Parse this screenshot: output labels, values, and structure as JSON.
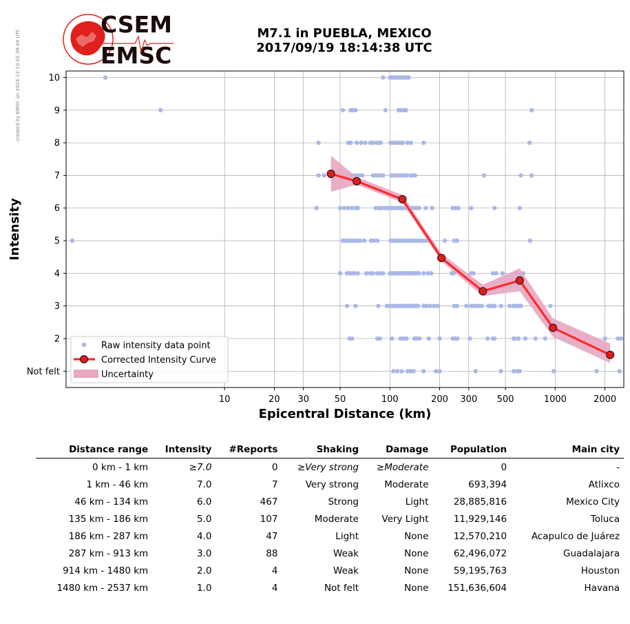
{
  "side_note": "created by EMSC on 2024-12-10 02:39:44 UTC",
  "logo": {
    "top": "CSEM",
    "bottom": "EMSC"
  },
  "title": {
    "line1": "M7.1 in PUEBLA, MEXICO",
    "line2": "2017/09/19 18:14:38 UTC"
  },
  "colors": {
    "raw_points": "#aab8e8",
    "curve": "#ff2a2a",
    "marker": "#e21b1b",
    "uncertainty": "#e8a6c2",
    "logo_red": "#e0201c"
  },
  "chart_data": {
    "type": "scatter",
    "xlabel": "Epicentral Distance (km)",
    "ylabel": "Intensity",
    "x_scale": "log",
    "xlim": [
      1.1,
      2600
    ],
    "ylim": [
      0.5,
      10.2
    ],
    "x_ticks": [
      10,
      20,
      30,
      50,
      100,
      200,
      300,
      500,
      1000,
      2000
    ],
    "x_tick_labels": [
      "10",
      "20",
      "30",
      "50",
      "100",
      "200",
      "300",
      "500",
      "1000",
      "2000"
    ],
    "y_ticks": [
      1,
      2,
      3,
      4,
      5,
      6,
      7,
      8,
      9,
      10
    ],
    "y_tick_labels": [
      "Not felt",
      "2",
      "3",
      "4",
      "5",
      "6",
      "7",
      "8",
      "9",
      "10"
    ],
    "grid": true,
    "legend_position": "lower-left",
    "legend": [
      "Raw intensity data point",
      "Corrected Intensity Curve",
      "Uncertainty"
    ],
    "raw_points": [
      [
        1.9,
        10
      ],
      [
        91,
        10
      ],
      [
        100,
        10
      ],
      [
        103,
        10
      ],
      [
        106,
        10
      ],
      [
        109,
        10
      ],
      [
        112,
        10
      ],
      [
        115,
        10
      ],
      [
        118,
        10
      ],
      [
        121,
        10
      ],
      [
        124,
        10
      ],
      [
        127,
        10
      ],
      [
        130,
        10
      ],
      [
        4.1,
        9
      ],
      [
        52,
        9
      ],
      [
        58,
        9
      ],
      [
        60,
        9
      ],
      [
        62,
        9
      ],
      [
        94,
        9
      ],
      [
        113,
        9
      ],
      [
        116,
        9
      ],
      [
        119,
        9
      ],
      [
        122,
        9
      ],
      [
        125,
        9
      ],
      [
        720,
        9
      ],
      [
        37,
        8
      ],
      [
        56,
        8
      ],
      [
        58,
        8
      ],
      [
        63,
        8
      ],
      [
        67,
        8
      ],
      [
        71,
        8
      ],
      [
        76,
        8
      ],
      [
        79,
        8
      ],
      [
        83,
        8
      ],
      [
        86,
        8
      ],
      [
        88,
        8
      ],
      [
        101,
        8
      ],
      [
        104,
        8
      ],
      [
        108,
        8
      ],
      [
        112,
        8
      ],
      [
        116,
        8
      ],
      [
        120,
        8
      ],
      [
        128,
        8
      ],
      [
        134,
        8
      ],
      [
        160,
        8
      ],
      [
        700,
        8
      ],
      [
        37,
        7
      ],
      [
        40,
        7
      ],
      [
        55,
        7
      ],
      [
        59,
        7
      ],
      [
        62,
        7
      ],
      [
        65,
        7
      ],
      [
        68,
        7
      ],
      [
        79,
        7
      ],
      [
        82,
        7
      ],
      [
        85,
        7
      ],
      [
        88,
        7
      ],
      [
        91,
        7
      ],
      [
        102,
        7
      ],
      [
        106,
        7
      ],
      [
        110,
        7
      ],
      [
        114,
        7
      ],
      [
        118,
        7
      ],
      [
        122,
        7
      ],
      [
        126,
        7
      ],
      [
        133,
        7
      ],
      [
        137,
        7
      ],
      [
        142,
        7
      ],
      [
        370,
        7
      ],
      [
        620,
        7
      ],
      [
        720,
        7
      ],
      [
        36,
        6
      ],
      [
        50,
        6
      ],
      [
        53,
        6
      ],
      [
        56,
        6
      ],
      [
        59,
        6
      ],
      [
        62,
        6
      ],
      [
        64,
        6
      ],
      [
        82,
        6
      ],
      [
        86,
        6
      ],
      [
        89,
        6
      ],
      [
        93,
        6
      ],
      [
        96,
        6
      ],
      [
        99,
        6
      ],
      [
        103,
        6
      ],
      [
        107,
        6
      ],
      [
        111,
        6
      ],
      [
        115,
        6
      ],
      [
        119,
        6
      ],
      [
        124,
        6
      ],
      [
        128,
        6
      ],
      [
        133,
        6
      ],
      [
        138,
        6
      ],
      [
        144,
        6
      ],
      [
        150,
        6
      ],
      [
        165,
        6
      ],
      [
        180,
        6
      ],
      [
        240,
        6
      ],
      [
        250,
        6
      ],
      [
        260,
        6
      ],
      [
        310,
        6
      ],
      [
        430,
        6
      ],
      [
        610,
        6
      ],
      [
        1.2,
        5
      ],
      [
        52,
        5
      ],
      [
        54,
        5
      ],
      [
        56,
        5
      ],
      [
        58,
        5
      ],
      [
        60,
        5
      ],
      [
        62,
        5
      ],
      [
        64,
        5
      ],
      [
        66,
        5
      ],
      [
        70,
        5
      ],
      [
        77,
        5
      ],
      [
        80,
        5
      ],
      [
        84,
        5
      ],
      [
        101,
        5
      ],
      [
        104,
        5
      ],
      [
        107,
        5
      ],
      [
        111,
        5
      ],
      [
        115,
        5
      ],
      [
        118,
        5
      ],
      [
        122,
        5
      ],
      [
        126,
        5
      ],
      [
        130,
        5
      ],
      [
        134,
        5
      ],
      [
        138,
        5
      ],
      [
        142,
        5
      ],
      [
        147,
        5
      ],
      [
        152,
        5
      ],
      [
        158,
        5
      ],
      [
        165,
        5
      ],
      [
        173,
        5
      ],
      [
        215,
        5
      ],
      [
        245,
        5
      ],
      [
        255,
        5
      ],
      [
        705,
        5
      ],
      [
        50,
        4
      ],
      [
        55,
        4
      ],
      [
        57,
        4
      ],
      [
        59,
        4
      ],
      [
        61,
        4
      ],
      [
        64,
        4
      ],
      [
        72,
        4
      ],
      [
        76,
        4
      ],
      [
        79,
        4
      ],
      [
        84,
        4
      ],
      [
        88,
        4
      ],
      [
        91,
        4
      ],
      [
        100,
        4
      ],
      [
        103,
        4
      ],
      [
        106,
        4
      ],
      [
        109,
        4
      ],
      [
        112,
        4
      ],
      [
        115,
        4
      ],
      [
        118,
        4
      ],
      [
        121,
        4
      ],
      [
        125,
        4
      ],
      [
        129,
        4
      ],
      [
        133,
        4
      ],
      [
        137,
        4
      ],
      [
        141,
        4
      ],
      [
        145,
        4
      ],
      [
        150,
        4
      ],
      [
        160,
        4
      ],
      [
        170,
        4
      ],
      [
        178,
        4
      ],
      [
        237,
        4
      ],
      [
        243,
        4
      ],
      [
        310,
        4
      ],
      [
        320,
        4
      ],
      [
        420,
        4
      ],
      [
        440,
        4
      ],
      [
        480,
        4
      ],
      [
        585,
        4
      ],
      [
        640,
        4
      ],
      [
        55,
        3
      ],
      [
        62,
        3
      ],
      [
        85,
        3
      ],
      [
        96,
        3
      ],
      [
        100,
        3
      ],
      [
        104,
        3
      ],
      [
        108,
        3
      ],
      [
        112,
        3
      ],
      [
        115,
        3
      ],
      [
        118,
        3
      ],
      [
        121,
        3
      ],
      [
        124,
        3
      ],
      [
        127,
        3
      ],
      [
        130,
        3
      ],
      [
        133,
        3
      ],
      [
        136,
        3
      ],
      [
        139,
        3
      ],
      [
        142,
        3
      ],
      [
        145,
        3
      ],
      [
        148,
        3
      ],
      [
        160,
        3
      ],
      [
        167,
        3
      ],
      [
        175,
        3
      ],
      [
        185,
        3
      ],
      [
        195,
        3
      ],
      [
        245,
        3
      ],
      [
        255,
        3
      ],
      [
        290,
        3
      ],
      [
        310,
        3
      ],
      [
        320,
        3
      ],
      [
        330,
        3
      ],
      [
        345,
        3
      ],
      [
        360,
        3
      ],
      [
        395,
        3
      ],
      [
        405,
        3
      ],
      [
        420,
        3
      ],
      [
        430,
        3
      ],
      [
        470,
        3
      ],
      [
        530,
        3
      ],
      [
        560,
        3
      ],
      [
        580,
        3
      ],
      [
        600,
        3
      ],
      [
        620,
        3
      ],
      [
        935,
        3
      ],
      [
        57,
        2
      ],
      [
        59,
        2
      ],
      [
        84,
        2
      ],
      [
        87,
        2
      ],
      [
        103,
        2
      ],
      [
        116,
        2
      ],
      [
        121,
        2
      ],
      [
        126,
        2
      ],
      [
        141,
        2
      ],
      [
        146,
        2
      ],
      [
        151,
        2
      ],
      [
        172,
        2
      ],
      [
        200,
        2
      ],
      [
        240,
        2
      ],
      [
        248,
        2
      ],
      [
        256,
        2
      ],
      [
        305,
        2
      ],
      [
        390,
        2
      ],
      [
        420,
        2
      ],
      [
        430,
        2
      ],
      [
        560,
        2
      ],
      [
        570,
        2
      ],
      [
        600,
        2
      ],
      [
        660,
        2
      ],
      [
        760,
        2
      ],
      [
        870,
        2
      ],
      [
        2000,
        2
      ],
      [
        2400,
        2
      ],
      [
        2500,
        2
      ],
      [
        105,
        1
      ],
      [
        111,
        1
      ],
      [
        118,
        1
      ],
      [
        128,
        1
      ],
      [
        133,
        1
      ],
      [
        139,
        1
      ],
      [
        160,
        1
      ],
      [
        190,
        1
      ],
      [
        200,
        1
      ],
      [
        330,
        1
      ],
      [
        470,
        1
      ],
      [
        560,
        1
      ],
      [
        590,
        1
      ],
      [
        610,
        1
      ],
      [
        980,
        1
      ],
      [
        1780,
        1
      ],
      [
        2450,
        1
      ]
    ],
    "corrected_curve": {
      "x": [
        44,
        63,
        119,
        205,
        365,
        610,
        970,
        2150
      ],
      "y": [
        7.05,
        6.82,
        6.27,
        4.47,
        3.45,
        3.78,
        2.33,
        1.5
      ]
    },
    "uncertainty": {
      "x": [
        44,
        63,
        119,
        205,
        365,
        610,
        970,
        2150
      ],
      "lo": [
        6.5,
        6.72,
        6.17,
        4.37,
        3.3,
        3.45,
        2.05,
        1.25
      ],
      "hi": [
        7.6,
        6.95,
        6.4,
        4.6,
        3.65,
        4.15,
        2.62,
        1.85
      ]
    }
  },
  "table": {
    "headers": [
      "Distance range",
      "Intensity",
      "#Reports",
      "Shaking",
      "Damage",
      "Population",
      "Main city"
    ],
    "rows": [
      [
        "0 km -    1 km",
        "≥7.0",
        "0",
        "≥Very strong",
        "≥Moderate",
        "0",
        "-"
      ],
      [
        "1 km -   46 km",
        "7.0",
        "7",
        "Very strong",
        "Moderate",
        "693,394",
        "Atlixco"
      ],
      [
        "46 km -  134 km",
        "6.0",
        "467",
        "Strong",
        "Light",
        "28,885,816",
        "Mexico City"
      ],
      [
        "135 km -  186 km",
        "5.0",
        "107",
        "Moderate",
        "Very Light",
        "11,929,146",
        "Toluca"
      ],
      [
        "186 km -  287 km",
        "4.0",
        "47",
        "Light",
        "None",
        "12,570,210",
        "Acapulco de Juárez"
      ],
      [
        "287 km -  913 km",
        "3.0",
        "88",
        "Weak",
        "None",
        "62,496,072",
        "Guadalajara"
      ],
      [
        "914 km - 1480 km",
        "2.0",
        "4",
        "Weak",
        "None",
        "59,195,763",
        "Houston"
      ],
      [
        "1480 km - 2537 km",
        "1.0",
        "4",
        "Not felt",
        "None",
        "151,636,604",
        "Havana"
      ]
    ]
  }
}
